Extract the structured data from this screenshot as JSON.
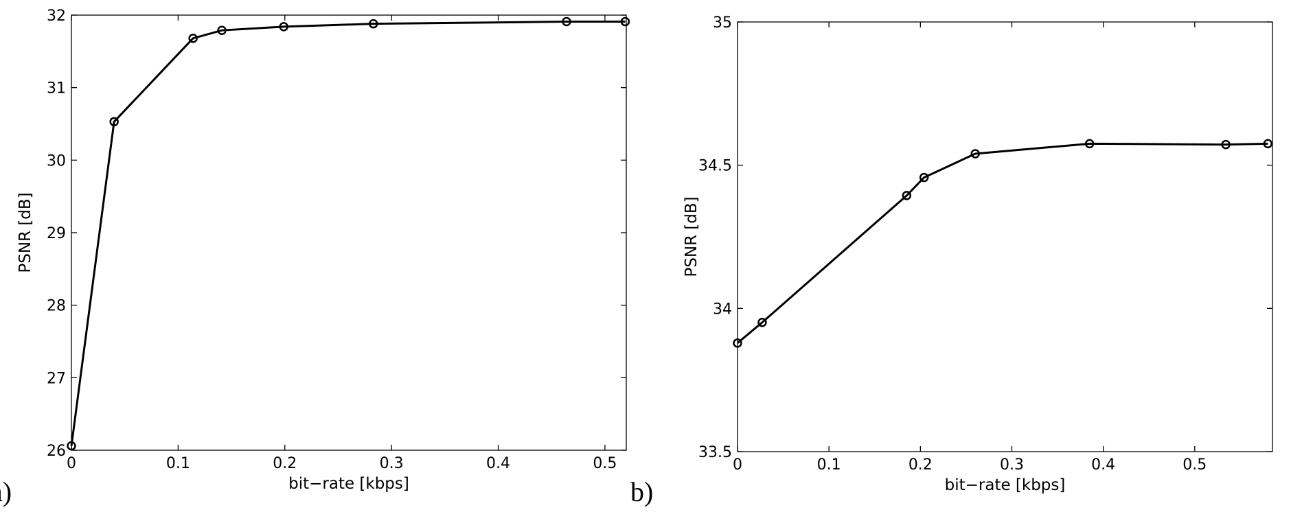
{
  "chart_data": [
    {
      "type": "line",
      "panel_label": "a)",
      "x_label": "bit−rate [kbps]",
      "y_label": "PSNR [dB]",
      "x": [
        0,
        0.04,
        0.114,
        0.141,
        0.199,
        0.283,
        0.464,
        0.519
      ],
      "series": [
        {
          "color": "#000000",
          "values": [
            26.06,
            30.53,
            31.68,
            31.79,
            31.84,
            31.88,
            31.91,
            31.91
          ]
        }
      ],
      "xlim": [
        0,
        0.52
      ],
      "xticks": [
        0,
        0.1,
        0.2,
        0.3,
        0.4,
        0.5
      ],
      "ylim": [
        26,
        32
      ],
      "yticks": [
        26,
        27,
        28,
        29,
        30,
        31,
        32
      ]
    },
    {
      "type": "line",
      "panel_label": "b)",
      "x_label": "bit−rate [kbps]",
      "y_label": "PSNR [dB]",
      "x": [
        0,
        0.027,
        0.185,
        0.204,
        0.26,
        0.385,
        0.534,
        0.58
      ],
      "series": [
        {
          "color": "#000000",
          "values": [
            33.879,
            33.951,
            34.394,
            34.457,
            34.54,
            34.575,
            34.572,
            34.575
          ]
        }
      ],
      "xlim": [
        0,
        0.585
      ],
      "xticks": [
        0,
        0.1,
        0.2,
        0.3,
        0.4,
        0.5
      ],
      "ylim": [
        33.5,
        35
      ],
      "yticks": [
        33.5,
        34,
        34.5,
        35
      ]
    }
  ]
}
